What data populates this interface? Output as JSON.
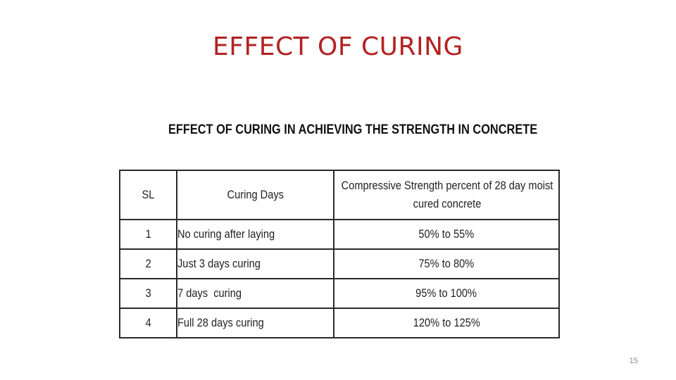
{
  "slide": {
    "title": "EFFECT OF CURING",
    "page_number": "15"
  },
  "table": {
    "heading": "EFFECT OF CURING IN ACHIEVING THE STRENGTH IN CONCRETE",
    "columns": [
      "SL",
      "Curing Days",
      "Compressive Strength percent of 28 day moist cured concrete"
    ],
    "rows": [
      {
        "sl": "1",
        "curing_days": "No curing after laying",
        "strength": "50% to 55%"
      },
      {
        "sl": "2",
        "curing_days": "Just 3 days curing",
        "strength": "75% to 80%"
      },
      {
        "sl": "3",
        "curing_days": "7 days  curing",
        "strength": "95% to 100%"
      },
      {
        "sl": "4",
        "curing_days": "Full 28 days curing",
        "strength": "120% to 125%"
      }
    ]
  },
  "colors": {
    "title": "#b22222",
    "table_border": "#2a2a2a",
    "text": "#222222",
    "page_number": "#8a8a8a"
  }
}
